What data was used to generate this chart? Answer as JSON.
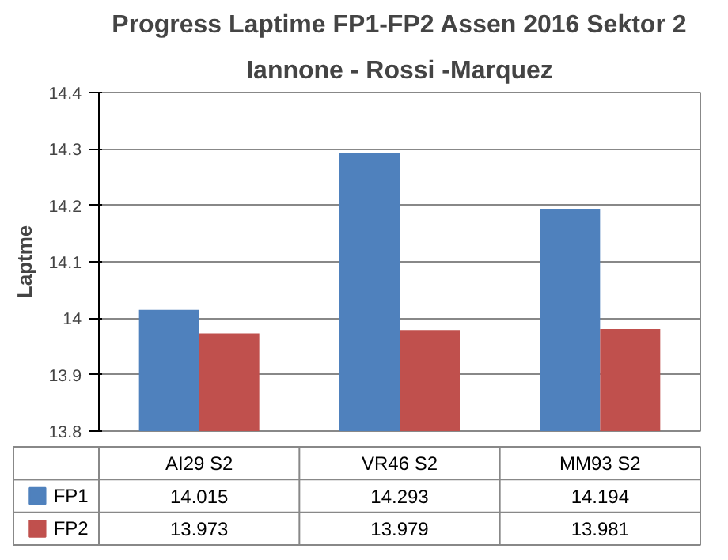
{
  "chart_data": {
    "type": "bar",
    "title": "Progress Laptime FP1-FP2 Assen 2016 Sektor 2",
    "subtitle": "Iannone - Rossi -Marquez",
    "ylabel": "Laptme",
    "categories": [
      "AI29 S2",
      "VR46 S2",
      "MM93 S2"
    ],
    "series": [
      {
        "name": "FP1",
        "color": "#4f81bd",
        "values": [
          14.015,
          14.293,
          14.194
        ]
      },
      {
        "name": "FP2",
        "color": "#c0504d",
        "values": [
          13.973,
          13.979,
          13.981
        ]
      }
    ],
    "ylim": [
      13.8,
      14.4
    ],
    "yticks": [
      13.8,
      13.9,
      14,
      14.1,
      14.2,
      14.3,
      14.4
    ],
    "grid": "y",
    "legend": "bottom",
    "data_labels": true
  }
}
